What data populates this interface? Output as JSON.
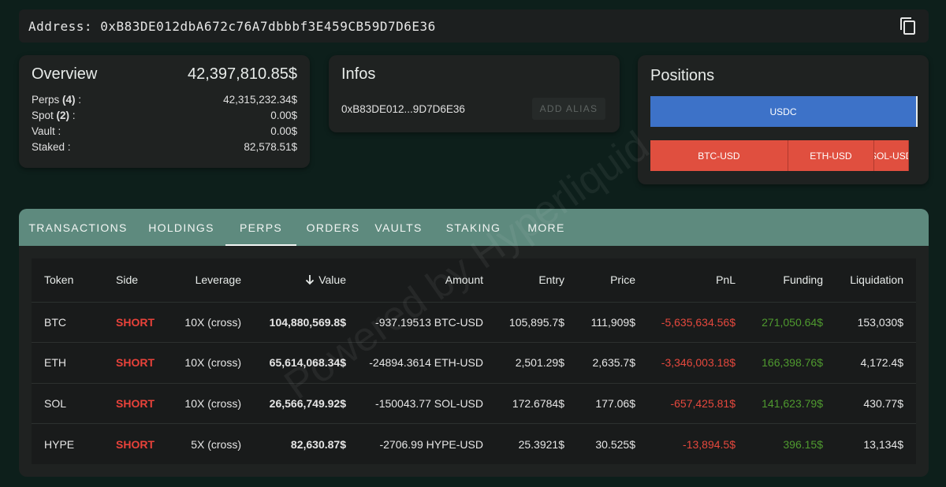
{
  "address_bar": {
    "label": "Address:",
    "address": "0xB83DE012dbA672c76A7dbbbf3E459CB59D7D6E36"
  },
  "overview": {
    "title": "Overview",
    "total": "42,397,810.85$",
    "rows": [
      {
        "label": "Perps",
        "count": "(4)",
        "suffix": " :",
        "value": "42,315,232.34$"
      },
      {
        "label": "Spot",
        "count": "(2)",
        "suffix": " :",
        "value": "0.00$"
      },
      {
        "label": "Vault",
        "count": "",
        "suffix": " :",
        "value": "0.00$"
      },
      {
        "label": "Staked",
        "count": "",
        "suffix": " :",
        "value": "82,578.51$"
      }
    ]
  },
  "infos": {
    "title": "Infos",
    "short_address": "0xB83DE012...9D7D6E36",
    "add_alias_label": "ADD ALIAS"
  },
  "positions": {
    "title": "Positions",
    "long_bar": {
      "label": "USDC",
      "color": "#3d72c8"
    },
    "short_bar": {
      "color": "#e04f3f",
      "segments": [
        {
          "label": "BTC-USD",
          "share": 0.5155
        },
        {
          "label": "ETH-USD",
          "share": 0.3225
        },
        {
          "label": "SOL-USD",
          "share": 0.1306
        }
      ]
    }
  },
  "tabs": [
    {
      "label": "TRANSACTIONS",
      "active": false
    },
    {
      "label": "HOLDINGS",
      "active": false
    },
    {
      "label": "PERPS",
      "active": true
    },
    {
      "label": "ORDERS",
      "active": false
    },
    {
      "label": "VAULTS",
      "active": false
    },
    {
      "label": "STAKING",
      "active": false
    },
    {
      "label": "MORE",
      "active": false
    }
  ],
  "table": {
    "headers": {
      "token": "Token",
      "side": "Side",
      "leverage": "Leverage",
      "value": "Value",
      "amount": "Amount",
      "entry": "Entry",
      "price": "Price",
      "pnl": "PnL",
      "funding": "Funding",
      "liquidation": "Liquidation"
    },
    "rows": [
      {
        "token": "BTC",
        "side": "SHORT",
        "leverage": "10X (cross)",
        "value": "104,880,569.8$",
        "amount": "-937.19513 BTC-USD",
        "entry": "105,895.7$",
        "price": "111,909$",
        "pnl": "-5,635,634.56$",
        "funding": "271,050.64$",
        "liquidation": "153,030$"
      },
      {
        "token": "ETH",
        "side": "SHORT",
        "leverage": "10X (cross)",
        "value": "65,614,068.34$",
        "amount": "-24894.3614 ETH-USD",
        "entry": "2,501.29$",
        "price": "2,635.7$",
        "pnl": "-3,346,003.18$",
        "funding": "166,398.76$",
        "liquidation": "4,172.4$"
      },
      {
        "token": "SOL",
        "side": "SHORT",
        "leverage": "10X (cross)",
        "value": "26,566,749.92$",
        "amount": "-150043.77 SOL-USD",
        "entry": "172.6784$",
        "price": "177.06$",
        "pnl": "-657,425.81$",
        "funding": "141,623.79$",
        "liquidation": "430.77$"
      },
      {
        "token": "HYPE",
        "side": "SHORT",
        "leverage": "5X (cross)",
        "value": "82,630.87$",
        "amount": "-2706.99 HYPE-USD",
        "entry": "25.3921$",
        "price": "30.525$",
        "pnl": "-13,894.5$",
        "funding": "396.15$",
        "liquidation": "13,134$"
      }
    ]
  },
  "watermark": "Powered by Hyperliquid"
}
